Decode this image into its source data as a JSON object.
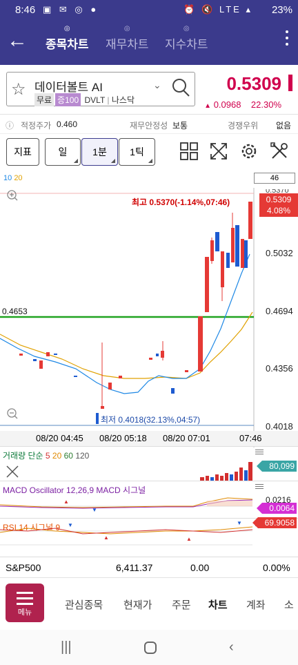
{
  "status_bar": {
    "time": "8:46",
    "battery": "23%",
    "left_icons": "▣ ✉ ◎ ●",
    "right_icons": "⏰ 🔇 LTE ▴"
  },
  "app_bar": {
    "tabs": [
      {
        "label": "종목차트",
        "active": true
      },
      {
        "label": "재무차트",
        "active": false
      },
      {
        "label": "지수차트",
        "active": false
      }
    ]
  },
  "stock": {
    "name": "데이터볼트 AI",
    "tags": [
      "무료",
      "증100"
    ],
    "ticker": "DVLT",
    "exchange": "나스닥",
    "price": "0.5309",
    "change": "0.0968",
    "change_pct": "22.30%",
    "up_color": "#d0004d"
  },
  "info_row": {
    "fair_label": "적정주가",
    "fair_value": "0.460",
    "fin_label": "재무안정성",
    "fin_value": "보통",
    "comp_label": "경쟁우위",
    "comp_value": "없음"
  },
  "toolbar": {
    "indicator": "지표",
    "period_day": "일",
    "period_min": "1분",
    "period_tick": "1틱"
  },
  "chart": {
    "ma_legend": [
      {
        "label": "10",
        "color": "#1e88e5"
      },
      {
        "label": "20",
        "color": "#e0a100"
      }
    ],
    "side_box": "46",
    "high_label": "최고 0.5370(-1.14%,07:46)",
    "low_label": "최저 0.4018(32.13%,04:57)",
    "hline_label": "0.4653",
    "cur_price": "0.5309",
    "cur_pct": "4.08%",
    "y_ticks": [
      "0.5370",
      "0.5032",
      "0.4694",
      "0.4356",
      "0.4018"
    ],
    "x_ticks": [
      "08/20 04:45",
      "08/20 05:18",
      "08/20 07:01",
      "07:46"
    ]
  },
  "chart_data": {
    "type": "candlestick",
    "x": [
      "04:45",
      "05:18",
      "07:01",
      "07:46"
    ],
    "ylim": [
      0.4018,
      0.537
    ],
    "price_high": 0.537,
    "price_low": 0.4018,
    "current": 0.5309,
    "reference_line": 0.4653,
    "moving_averages": [
      10,
      20
    ]
  },
  "volume_panel": {
    "title": "거래량 단순 5 20 60 120",
    "t5": "5",
    "t20": "20",
    "t60": "60",
    "t120": "120",
    "base": "거래량 단순",
    "value": "80,099"
  },
  "macd_panel": {
    "title": "MACD Oscillator 12,26,9 MACD 시그널",
    "value": "0.0064",
    "tick": "0.0216"
  },
  "rsi_panel": {
    "title": "RSI 14 시그널 9",
    "value": "69.9058"
  },
  "sp500": {
    "name": "S&P500",
    "value": "6,411.37",
    "change": "0.00",
    "pct": "0.00%"
  },
  "bottom_nav": {
    "menu": "메뉴",
    "items": [
      "관심종목",
      "현재가",
      "주문",
      "차트",
      "계좌",
      "소"
    ]
  }
}
